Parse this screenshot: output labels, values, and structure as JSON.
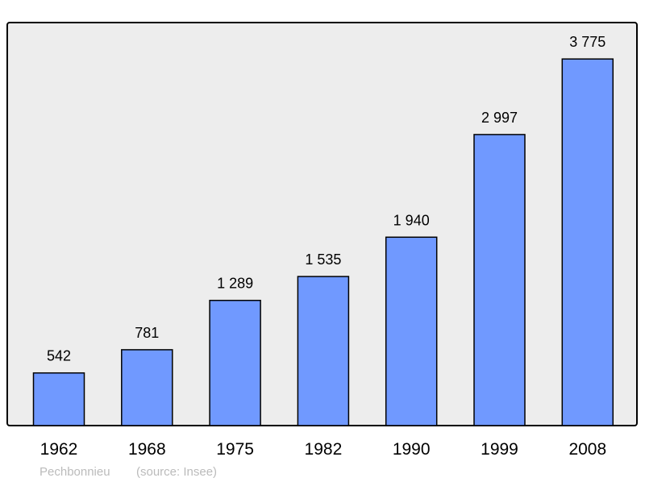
{
  "chart_data": {
    "type": "bar",
    "categories": [
      "1962",
      "1968",
      "1975",
      "1982",
      "1990",
      "1999",
      "2008"
    ],
    "values": [
      542,
      781,
      1289,
      1535,
      1940,
      2997,
      3775
    ],
    "data_labels": [
      "542",
      "781",
      "1 289",
      "1 535",
      "1 940",
      "2 997",
      "3 775"
    ],
    "title": "",
    "xlabel": "",
    "ylabel": "",
    "ylim": [
      0,
      4150
    ],
    "grid": false,
    "legend": "none",
    "colors": {
      "bar": "#7099ff",
      "bar_stroke": "#000000",
      "plot_background": "#ededed",
      "caption": "#bbbbbb"
    }
  },
  "caption": {
    "place": "Pechbonnieu",
    "source": "(source: Insee)"
  }
}
